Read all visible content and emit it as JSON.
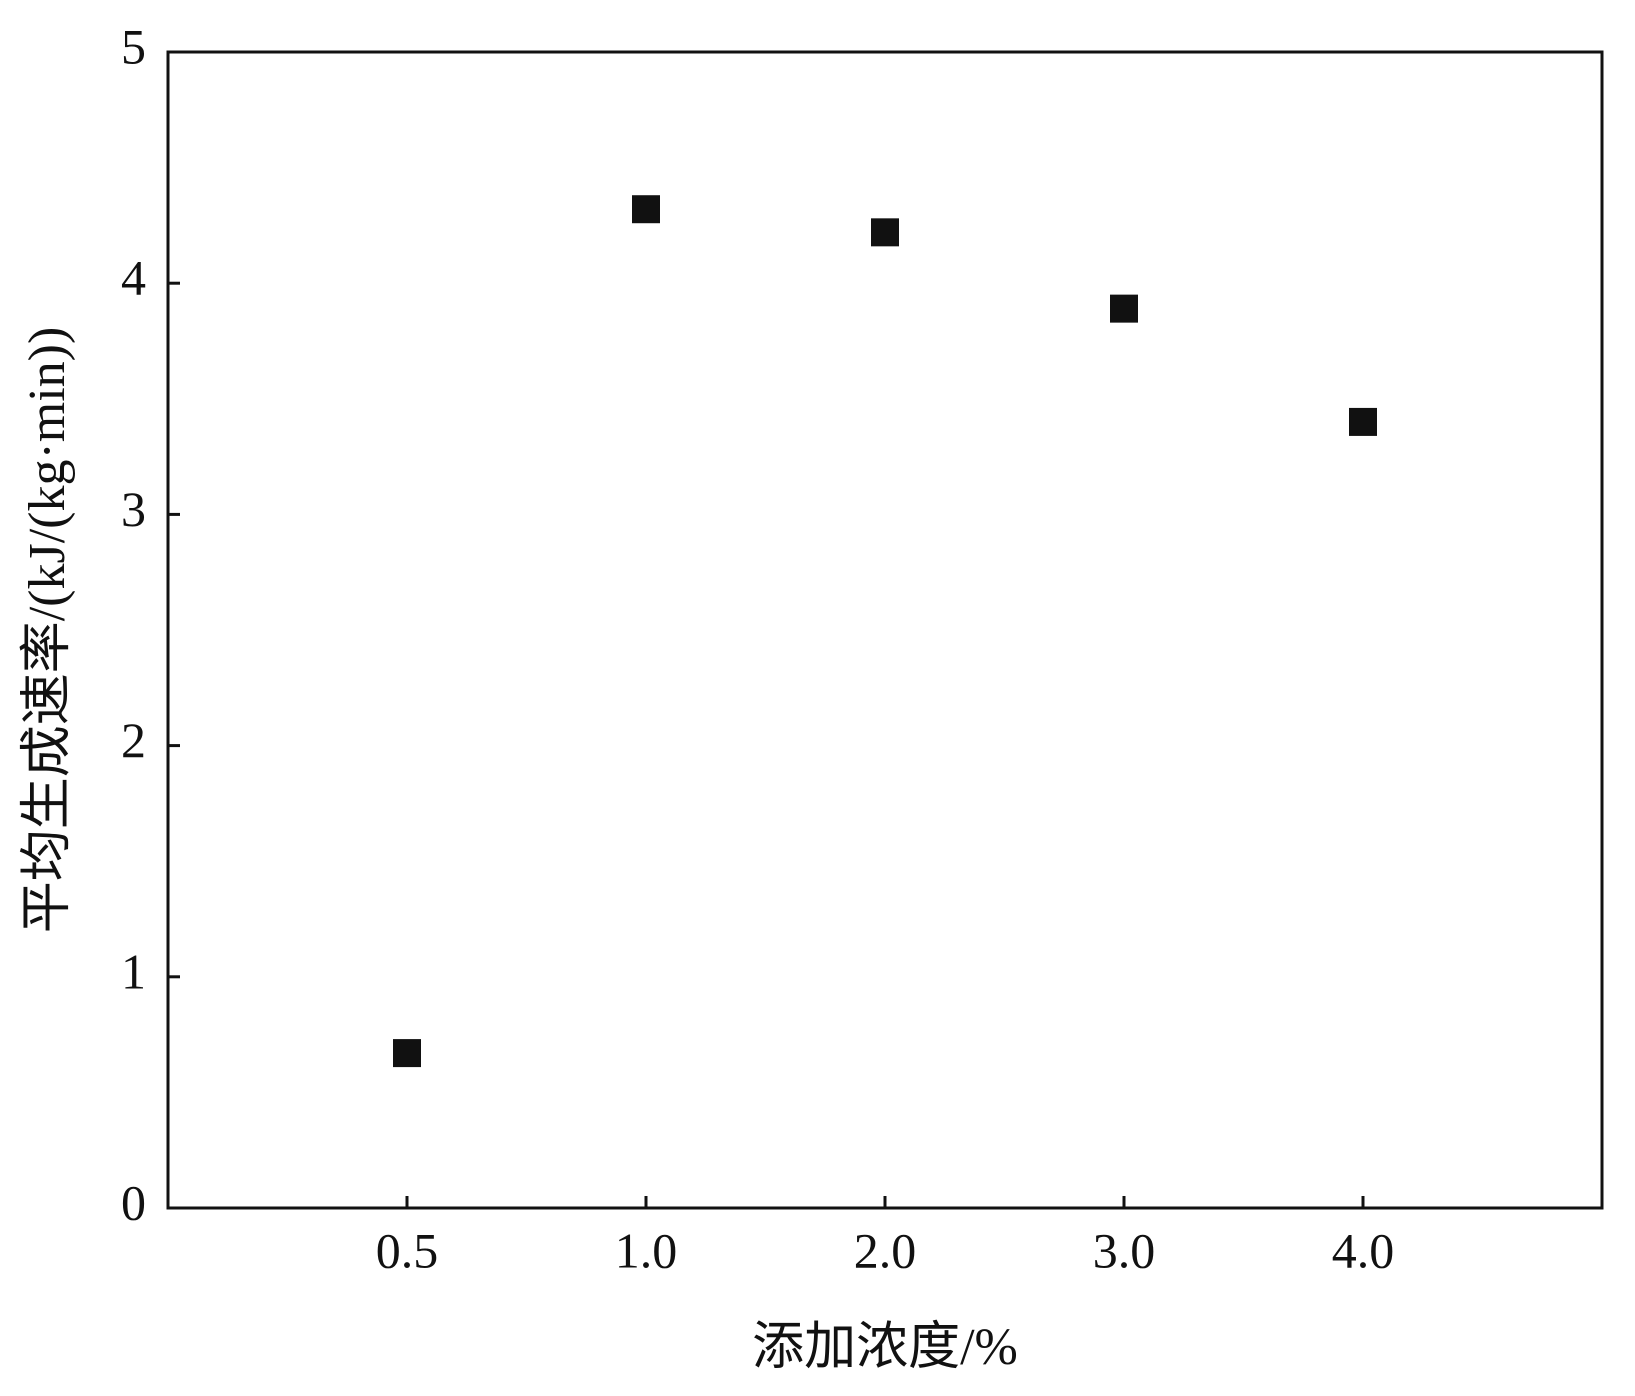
{
  "chart_data": {
    "type": "scatter",
    "xlabel": "添加浓度/%",
    "ylabel": "平均生成速率/(kJ/(kg·min))",
    "categories": [
      "0.5",
      "1.0",
      "2.0",
      "3.0",
      "4.0"
    ],
    "values": [
      0.67,
      4.32,
      4.22,
      3.89,
      3.4
    ],
    "color": "#111111",
    "marker": "square",
    "ylim": [
      0,
      5
    ],
    "yticks": [
      0,
      1,
      2,
      3,
      4,
      5
    ],
    "grid": false
  }
}
